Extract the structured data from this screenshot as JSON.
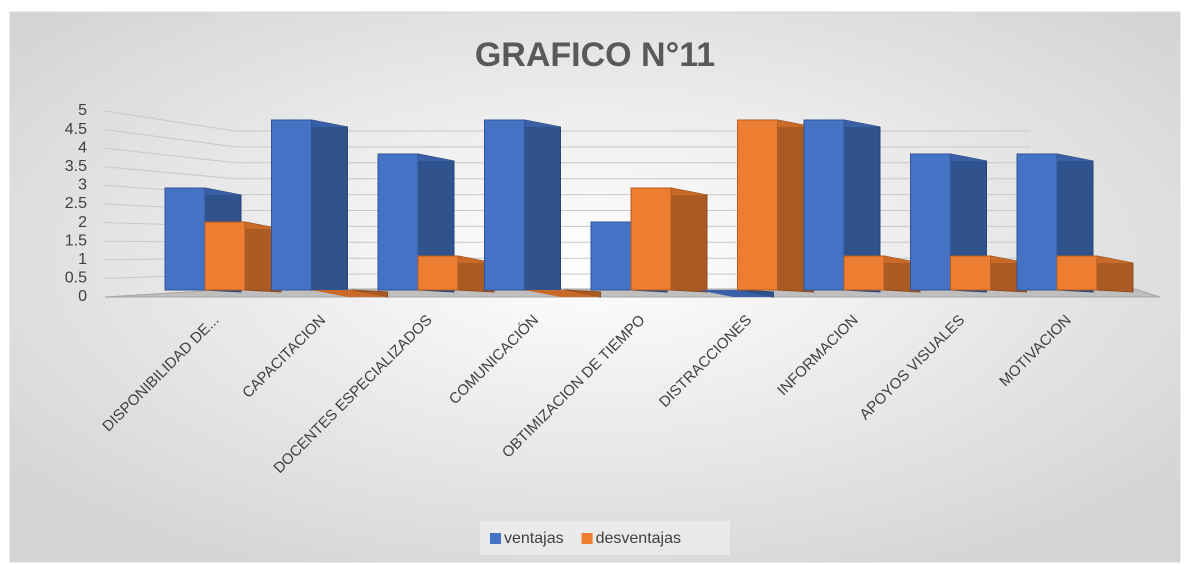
{
  "chart_data": {
    "type": "bar3d",
    "title": "GRAFICO N°11",
    "categories": [
      "DISPONIBILIDAD DE...",
      "CAPACITACION",
      "DOCENTES ESPECIALIZADOS",
      "COMUNICACIÓN",
      "OBTIMIZACION DE TIEMPO",
      "DISTRACCIONES",
      "INFORMACION",
      "APOYOS VISUALES",
      "MOTIVACION"
    ],
    "series": [
      {
        "name": "ventajas",
        "color": "#4472c4",
        "values": [
          3,
          5,
          4,
          5,
          2,
          0,
          5,
          4,
          4
        ]
      },
      {
        "name": "desventajas",
        "color": "#ed7d31",
        "values": [
          2,
          0,
          1,
          0,
          3,
          5,
          1,
          1,
          1
        ]
      }
    ],
    "ylim": [
      0,
      5
    ],
    "yticks": [
      0,
      0.5,
      1,
      1.5,
      2,
      2.5,
      3,
      3.5,
      4,
      4.5,
      5
    ],
    "grid": true,
    "legend": "bottom"
  }
}
